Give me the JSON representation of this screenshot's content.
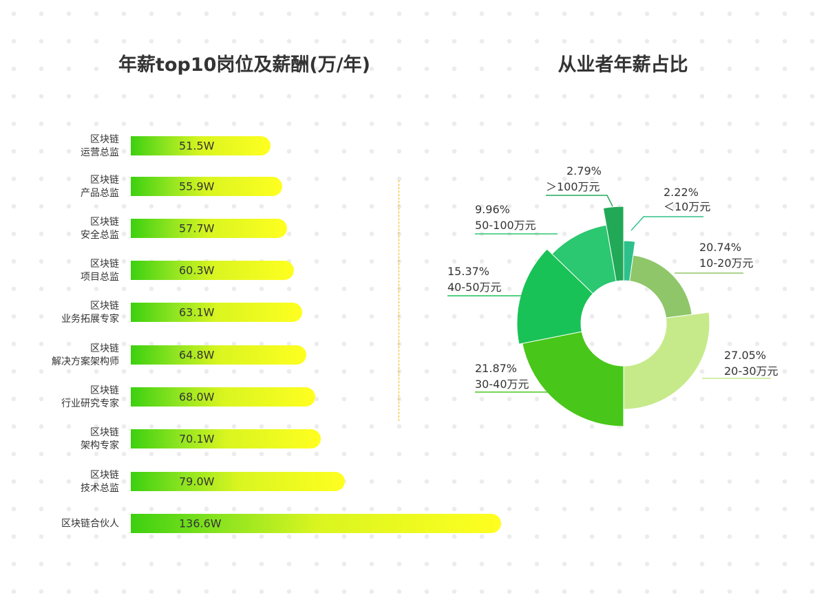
{
  "chart_data": [
    {
      "type": "bar",
      "orientation": "horizontal",
      "title": "年薪top10岗位及薪酬(万/年)",
      "categories": [
        [
          "区块链",
          "运营总监"
        ],
        [
          "区块链",
          "产品总监"
        ],
        [
          "区块链",
          "安全总监"
        ],
        [
          "区块链",
          "项目总监"
        ],
        [
          "区块链",
          "业务拓展专家"
        ],
        [
          "区块链",
          "解决方案架构师"
        ],
        [
          "区块链",
          "行业研究专家"
        ],
        [
          "区块链",
          "架构专家"
        ],
        [
          "区块链",
          "技术总监"
        ],
        [
          "区块链合伙人"
        ]
      ],
      "values": [
        51.5,
        55.9,
        57.7,
        60.3,
        63.1,
        64.8,
        68.0,
        70.1,
        79.0,
        136.6
      ],
      "value_labels": [
        "51.5W",
        "55.9W",
        "57.7W",
        "60.3W",
        "63.1W",
        "64.8W",
        "68.0W",
        "70.1W",
        "79.0W",
        "136.6W"
      ],
      "gradient": [
        "#3cd010",
        "#ffff20"
      ]
    },
    {
      "type": "pie",
      "variant": "rose-donut",
      "title": "从业者年薪占比",
      "slices": [
        {
          "category": "<10万元",
          "value": 2.22,
          "label_pct": "2.22%",
          "label_cat": "＜10万元",
          "color": "#2ec08a"
        },
        {
          "category": "10-20万元",
          "value": 20.74,
          "label_pct": "20.74%",
          "label_cat": "10-20万元",
          "color": "#8fc66a"
        },
        {
          "category": "20-30万元",
          "value": 27.05,
          "label_pct": "27.05%",
          "label_cat": "20-30万元",
          "color": "#c6ea8a"
        },
        {
          "category": "30-40万元",
          "value": 21.87,
          "label_pct": "21.87%",
          "label_cat": "30-40万元",
          "color": "#49c61a"
        },
        {
          "category": "40-50万元",
          "value": 15.37,
          "label_pct": "15.37%",
          "label_cat": "40-50万元",
          "color": "#19c256"
        },
        {
          "category": "50-100万元",
          "value": 9.96,
          "label_pct": "9.96%",
          "label_cat": "50-100万元",
          "color": "#2bc771"
        },
        {
          "category": ">100万元",
          "value": 2.79,
          "label_pct": "2.79%",
          "label_cat": "＞100万元",
          "color": "#22a958"
        }
      ]
    }
  ]
}
